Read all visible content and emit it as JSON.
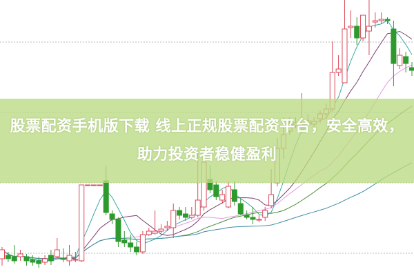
{
  "banner": {
    "title": "股票配资手机版下载 线上正规股票配资平台，安全高效，助力投资者稳健盈利"
  },
  "colors": {
    "up": "#d9485a",
    "down": "#2e9a2e",
    "grid": "#b8b8b8",
    "banner": "#bada82",
    "ma_lines": [
      "#3fa7a7",
      "#7d3d6d",
      "#e39be3",
      "#4c8c3c",
      "#3d8ca8"
    ]
  },
  "chart_data": {
    "type": "candlestick",
    "ylim": [
      0,
      40
    ],
    "grid": "horizontal-dotted",
    "gridlines": [
      33.9,
      23.7,
      13.5,
      3.3
    ],
    "moving_average_periods": [
      5,
      10,
      20,
      30,
      60
    ],
    "candles": [
      [
        2.5,
        4.2,
        1.5,
        3.8
      ],
      [
        3.0,
        3.5,
        2.0,
        2.5
      ],
      [
        2.8,
        4.5,
        1.8,
        2.2
      ],
      [
        2.8,
        3.8,
        2.2,
        3.2
      ],
      [
        2.8,
        3.2,
        1.5,
        2.2
      ],
      [
        2.4,
        3.0,
        1.5,
        2.0
      ],
      [
        2.2,
        2.8,
        1.2,
        1.8
      ],
      [
        2.0,
        3.0,
        1.6,
        2.5
      ],
      [
        3.0,
        3.8,
        1.6,
        2.2
      ],
      [
        2.8,
        5.5,
        2.4,
        3.8
      ],
      [
        2.6,
        4.0,
        2.0,
        2.4
      ],
      [
        2.2,
        4.5,
        1.5,
        3.0
      ],
      [
        2.4,
        3.5,
        2.0,
        2.4
      ],
      [
        2.2,
        13.2,
        2.0,
        13.2
      ],
      [
        13.2,
        13.2,
        13.2,
        13.2
      ],
      [
        13.2,
        13.2,
        13.2,
        13.2
      ],
      [
        13.2,
        13.2,
        13.2,
        13.2
      ],
      [
        13.8,
        16.0,
        8.8,
        9.2
      ],
      [
        9.0,
        9.5,
        7.5,
        8.2
      ],
      [
        8.2,
        8.5,
        4.2,
        5.0
      ],
      [
        5.2,
        6.5,
        4.2,
        4.8
      ],
      [
        4.8,
        6.0,
        3.5,
        4.2
      ],
      [
        4.2,
        5.0,
        3.0,
        3.5
      ],
      [
        3.5,
        6.5,
        3.2,
        6.0
      ],
      [
        6.0,
        7.0,
        5.8,
        6.5
      ],
      [
        6.2,
        9.5,
        6.0,
        6.5
      ],
      [
        6.5,
        7.5,
        6.2,
        6.8
      ],
      [
        7.0,
        8.0,
        6.5,
        7.2
      ],
      [
        7.0,
        10.5,
        5.5,
        9.5
      ],
      [
        9.5,
        10.0,
        8.2,
        8.8
      ],
      [
        9.0,
        10.0,
        8.0,
        8.5
      ],
      [
        8.5,
        10.0,
        8.2,
        8.8
      ],
      [
        8.8,
        18.0,
        8.5,
        11.0
      ],
      [
        10.0,
        17.5,
        9.5,
        16.5
      ],
      [
        14.0,
        16.0,
        12.0,
        12.5
      ],
      [
        13.2,
        13.8,
        11.0,
        11.5
      ],
      [
        11.0,
        12.5,
        10.5,
        11.8
      ],
      [
        10.0,
        13.8,
        9.8,
        13.0
      ],
      [
        12.5,
        13.8,
        10.2,
        10.8
      ],
      [
        10.5,
        11.2,
        8.8,
        9.0
      ],
      [
        8.8,
        9.5,
        8.2,
        8.5
      ],
      [
        8.5,
        10.0,
        7.5,
        8.2
      ],
      [
        8.2,
        8.8,
        7.8,
        8.2
      ],
      [
        8.5,
        10.0,
        8.0,
        9.5
      ],
      [
        10.2,
        15.5,
        9.8,
        11.8
      ],
      [
        13.5,
        20.0,
        13.0,
        18.5
      ],
      [
        18.5,
        23.0,
        17.0,
        20.5
      ],
      [
        21.0,
        23.0,
        20.5,
        22.0
      ],
      [
        21.8,
        23.0,
        21.4,
        22.2
      ],
      [
        21.5,
        26.5,
        21.0,
        22.0
      ],
      [
        22.2,
        23.5,
        21.5,
        22.5
      ],
      [
        22.0,
        23.0,
        21.5,
        22.4
      ],
      [
        22.8,
        24.0,
        22.2,
        23.5
      ],
      [
        23.5,
        25.0,
        22.8,
        24.2
      ],
      [
        24.2,
        34.0,
        23.8,
        29.5
      ],
      [
        29.5,
        32.0,
        29.0,
        30.0
      ],
      [
        28.0,
        40.0,
        28.0,
        35.8
      ],
      [
        36.0,
        38.5,
        34.5,
        36.2
      ],
      [
        36.2,
        37.5,
        33.5,
        34.5
      ],
      [
        34.5,
        37.8,
        34.0,
        37.8
      ],
      [
        35.5,
        40.0,
        32.0,
        36.2
      ],
      [
        36.8,
        38.2,
        36.0,
        37.0
      ],
      [
        37.0,
        38.2,
        36.5,
        37.2
      ],
      [
        37.2,
        37.5,
        36.5,
        37.0
      ],
      [
        35.8,
        37.0,
        27.5,
        30.8
      ],
      [
        30.5,
        33.0,
        30.0,
        32.0
      ],
      [
        31.8,
        32.5,
        29.5,
        30.8
      ],
      [
        30.2,
        31.0,
        29.0,
        29.8
      ]
    ]
  }
}
